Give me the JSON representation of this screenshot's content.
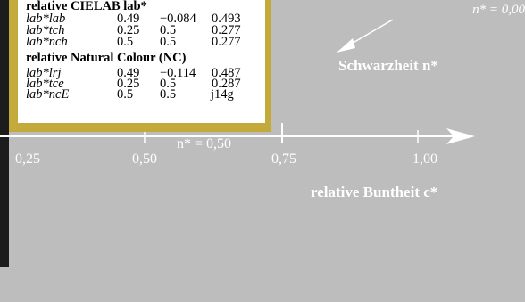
{
  "top_right_label": "n* = 0,00",
  "schwarzheit_label": "Schwarzheit n*",
  "buntheit_label": "relative Buntheit c*",
  "mid_label": "n* = 0,50",
  "axis_ticks": [
    "0,25",
    "0,50",
    "0,75",
    "1,00"
  ],
  "panel": {
    "section1_title": "relative CIELAB lab*",
    "section1_rows": [
      {
        "name": "lab*lab",
        "a": "0.49",
        "b": "−0.084",
        "c": "0.493"
      },
      {
        "name": "lab*tch",
        "a": "0.25",
        "b": "0.5",
        "c": "0.277"
      },
      {
        "name": "lab*nch",
        "a": "0.5",
        "b": "0.5",
        "c": "0.277"
      }
    ],
    "section2_title": "relative Natural Colour (NC)",
    "section2_rows": [
      {
        "name": "lab*lrj",
        "a": "0.49",
        "b": "−0.114",
        "c": "0.487"
      },
      {
        "name": "lab*tce",
        "a": "0.25",
        "b": "0.5",
        "c": "0.287"
      },
      {
        "name": "lab*ncE",
        "a": "0.5",
        "b": "0.5",
        "c": "j14g"
      }
    ]
  },
  "colors": {
    "background": "#bdbdbd",
    "panel_border": "#c4aa3a",
    "left_bar": "#1c1c1c",
    "foreground": "#ffffff"
  }
}
